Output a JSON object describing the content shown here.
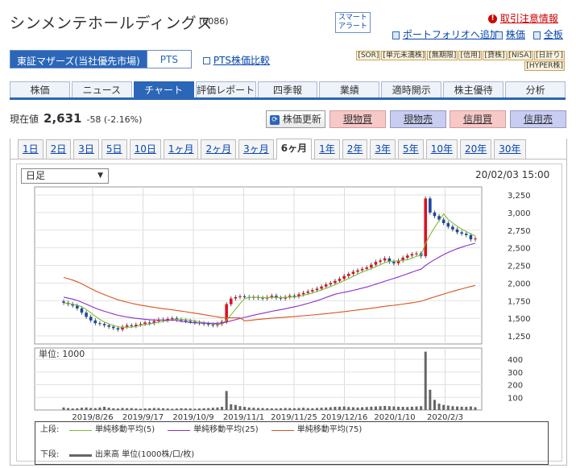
{
  "header": {
    "company_name": "シンメンテホールディングス",
    "code": "(6086)",
    "smart_alert": [
      "スマート",
      "アラート"
    ],
    "order_link": "取引注意情報",
    "portfolio_link": "ポートフォリオへ追加",
    "stock_link": "株価",
    "board_link": "全板"
  },
  "market": {
    "selected": "東証マザーズ(当社優先市場)",
    "pts": "PTS",
    "pts_compare": "PTS株価比較",
    "badges": [
      "[SOR]",
      "[単元未満株]",
      "[無期限]",
      "[信用]",
      "[貸株]",
      "[NISA]",
      "[日計り]",
      "[HYPER株]"
    ]
  },
  "tabs": [
    "株価",
    "ニュース",
    "チャート",
    "評価レポート",
    "四季報",
    "業績",
    "適時開示",
    "株主優待",
    "分析"
  ],
  "active_tab": "チャート",
  "price": {
    "label": "現在値",
    "value": "2,631",
    "change": "-58 (-2.16%)",
    "update_button": "株価更新",
    "buy_spot": "現物買",
    "sell_spot": "現物売",
    "buy_margin": "信用買",
    "sell_margin": "信用売"
  },
  "periods": [
    "1日",
    "2日",
    "3日",
    "5日",
    "10日",
    "1ヶ月",
    "2ヶ月",
    "3ヶ月",
    "6ヶ月",
    "1年",
    "2年",
    "3年",
    "5年",
    "10年",
    "20年",
    "30年"
  ],
  "active_period": "6ヶ月",
  "chart_controls": {
    "interval": "日足",
    "timestamp": "20/02/03 15:00",
    "volume_unit": "単位: 1000"
  },
  "chart_data": {
    "type": "candlestick",
    "price_axis": {
      "ticks": [
        "3,250",
        "3,000",
        "2,750",
        "2,500",
        "2,250",
        "2,000",
        "1,750",
        "1,500",
        "1,250"
      ],
      "ylim": [
        1250,
        3250
      ]
    },
    "volume_axis": {
      "ticks": [
        "400",
        "300",
        "200",
        "100"
      ],
      "ylim": [
        0,
        400
      ]
    },
    "x_labels": [
      "2019/8/26",
      "2019/9/17",
      "2019/10/9",
      "2019/11/1",
      "2019/11/25",
      "2019/12/16",
      "2020/1/10",
      "2020/2/3"
    ],
    "close": [
      1720,
      1700,
      1680,
      1640,
      1580,
      1520,
      1470,
      1430,
      1420,
      1400,
      1380,
      1360,
      1340,
      1380,
      1400,
      1390,
      1410,
      1420,
      1440,
      1430,
      1460,
      1480,
      1470,
      1490,
      1500,
      1480,
      1470,
      1460,
      1450,
      1440,
      1430,
      1420,
      1410,
      1400,
      1420,
      1450,
      1700,
      1780,
      1800,
      1810,
      1800,
      1790,
      1800,
      1790,
      1780,
      1800,
      1820,
      1790,
      1780,
      1800,
      1820,
      1810,
      1840,
      1860,
      1880,
      1900,
      1920,
      1950,
      1980,
      2000,
      2030,
      2060,
      2100,
      2130,
      2160,
      2180,
      2200,
      2220,
      2260,
      2300,
      2320,
      2350,
      2300,
      2280,
      2320,
      2360,
      2390,
      2410,
      2420,
      2380,
      3200,
      3000,
      2950,
      2900,
      2850,
      2800,
      2760,
      2720,
      2700,
      2680,
      2620,
      2631
    ],
    "volume": [
      20,
      15,
      12,
      14,
      18,
      20,
      16,
      15,
      20,
      25,
      18,
      14,
      12,
      16,
      14,
      15,
      12,
      10,
      12,
      14,
      16,
      15,
      14,
      12,
      10,
      12,
      14,
      13,
      12,
      10,
      12,
      14,
      15,
      18,
      20,
      25,
      150,
      45,
      40,
      30,
      25,
      20,
      18,
      16,
      15,
      14,
      13,
      12,
      14,
      16,
      15,
      14,
      16,
      18,
      15,
      14,
      16,
      18,
      20,
      22,
      25,
      26,
      28,
      24,
      22,
      20,
      22,
      24,
      26,
      28,
      30,
      32,
      30,
      28,
      26,
      25,
      24,
      26,
      28,
      30,
      460,
      160,
      80,
      50,
      40,
      35,
      30,
      28,
      26,
      25,
      28,
      22
    ],
    "series": [
      {
        "name": "単純移動平均(5)",
        "color": "#7fba3a"
      },
      {
        "name": "単純移動平均(25)",
        "color": "#8b2fc9"
      },
      {
        "name": "単純移動平均(75)",
        "color": "#d9541e"
      },
      {
        "name": "出来高 単位(1000株/口/枚)",
        "color": "#666666"
      }
    ]
  },
  "legend": {
    "upper": "上段:",
    "lower": "下段:",
    "ma5": "単純移動平均(5)",
    "ma25": "単純移動平均(25)",
    "ma75": "単純移動平均(75)",
    "volume": "出来高 単位(1000株/口/枚)"
  }
}
